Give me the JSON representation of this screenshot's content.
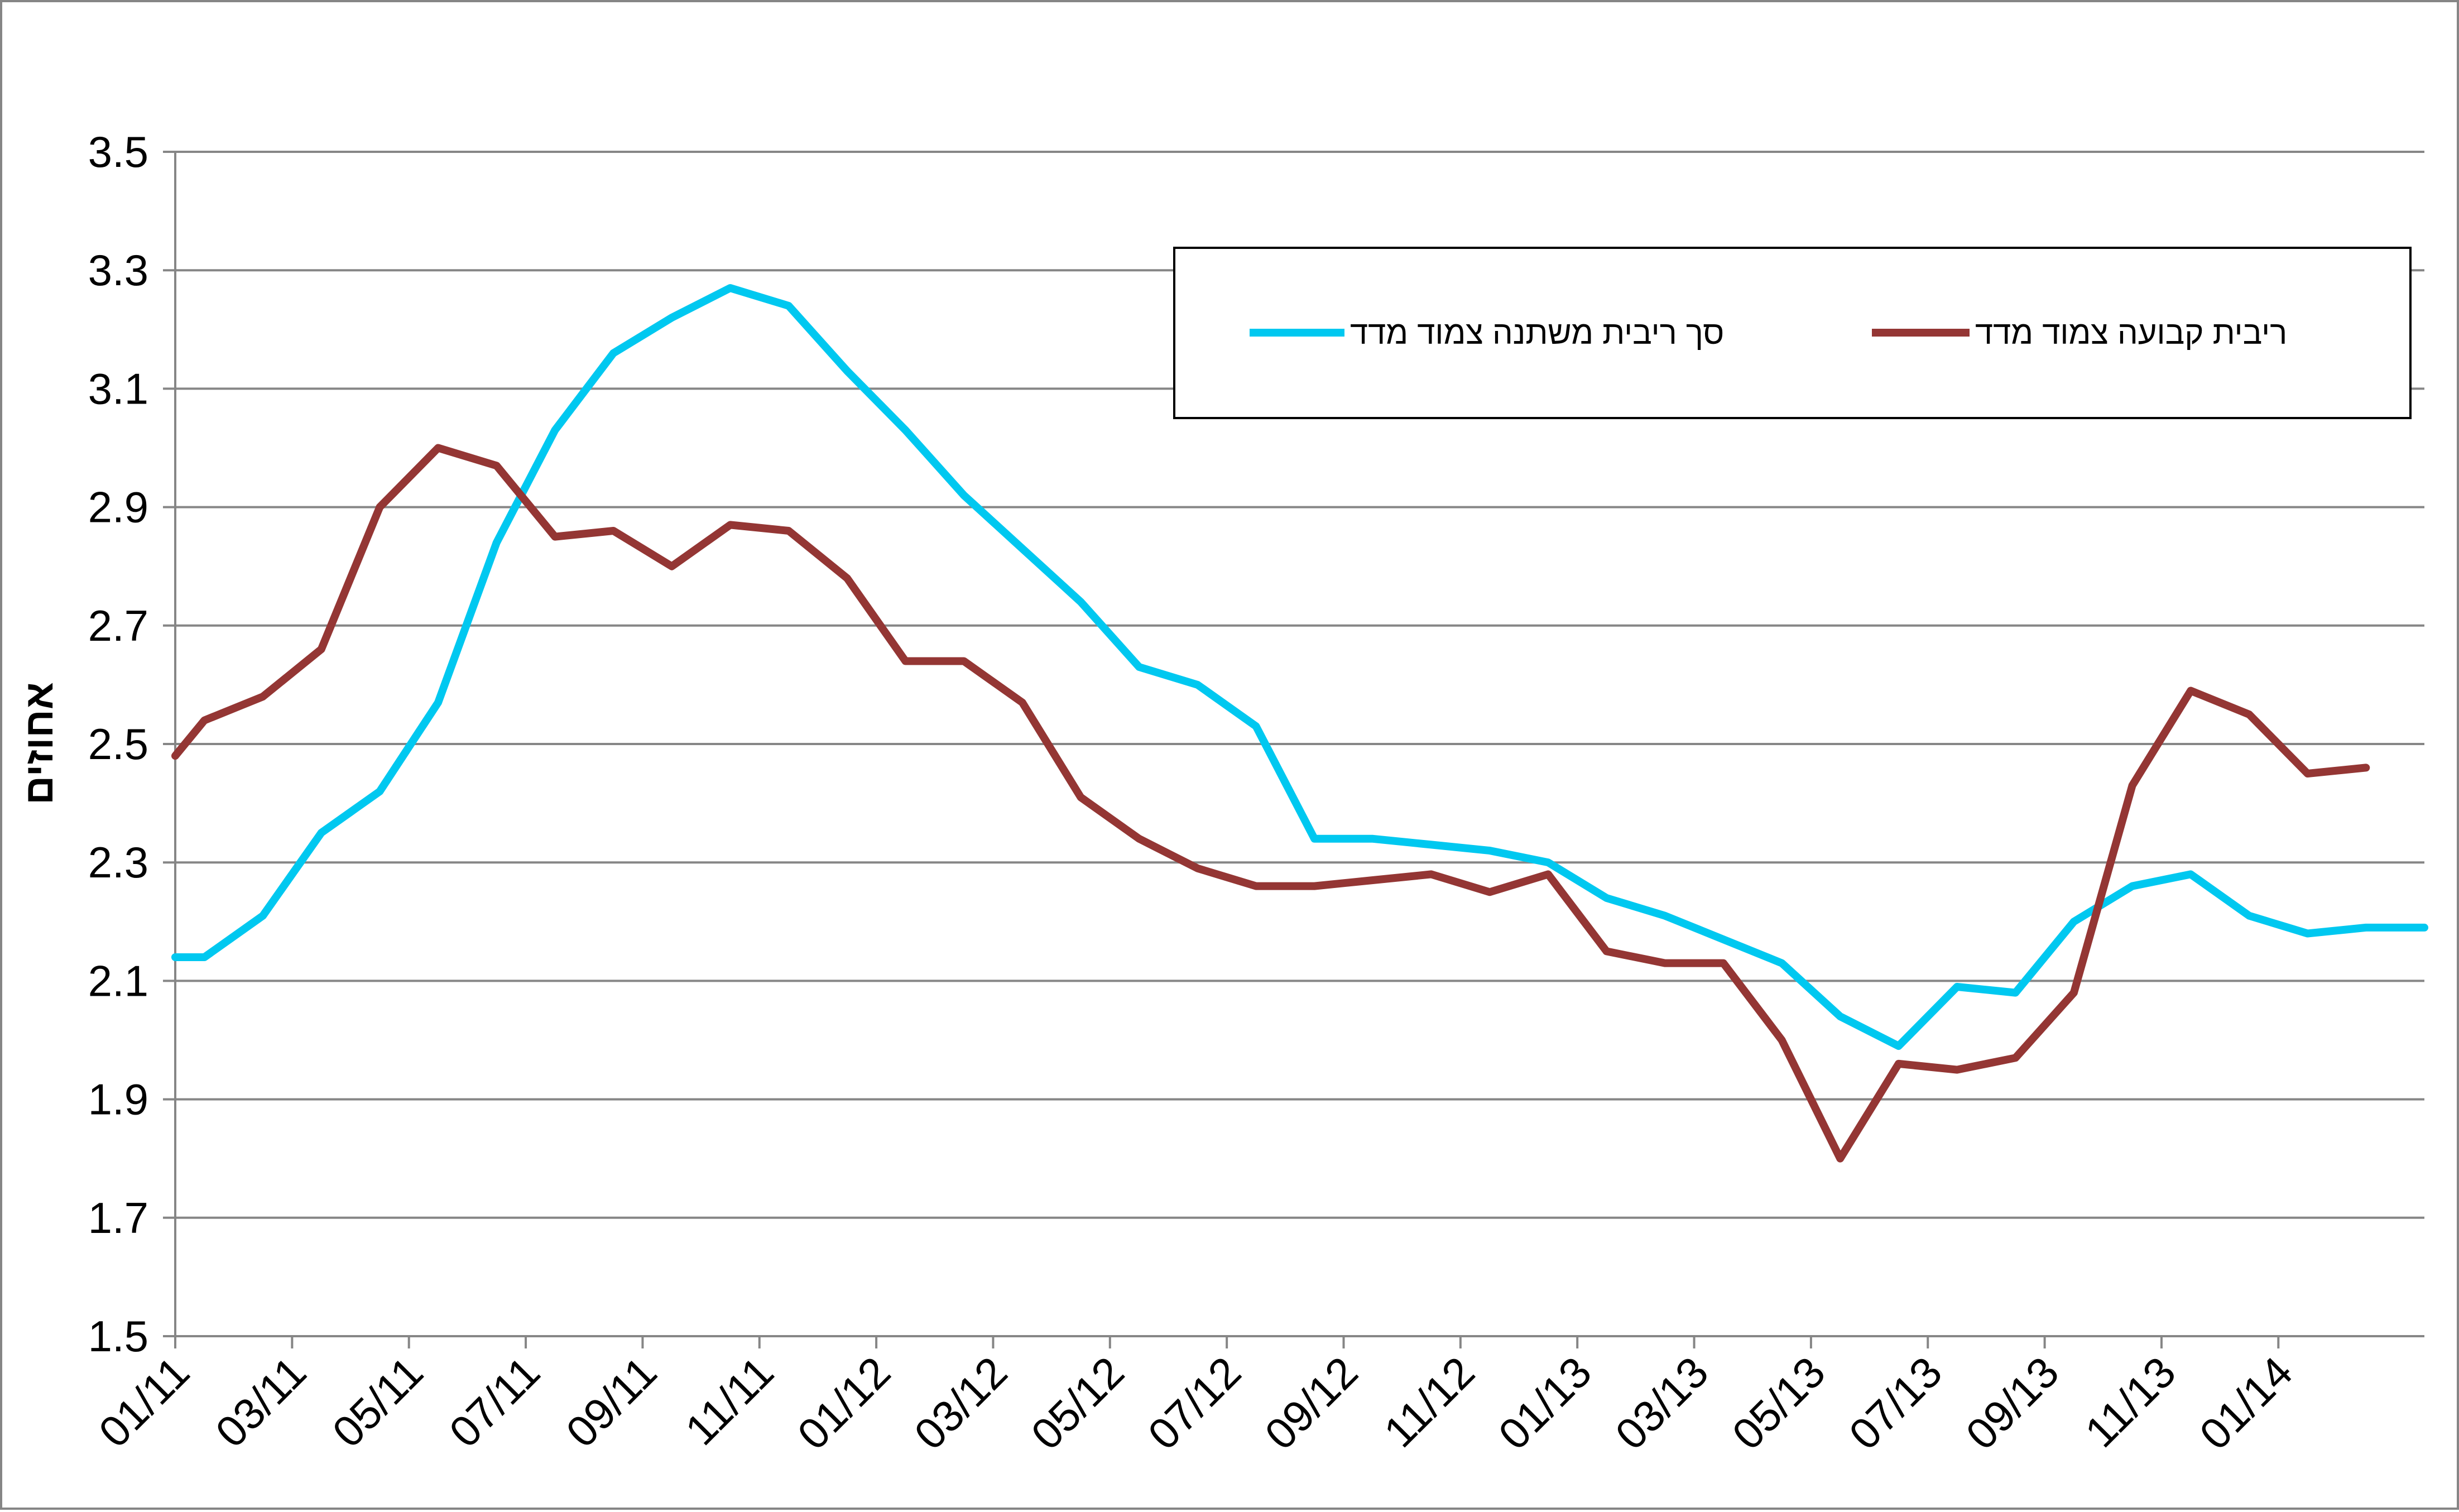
{
  "chart_data": {
    "type": "line",
    "ylabel": "אחוזים",
    "ylim": [
      1.5,
      3.5
    ],
    "y_ticks": [
      "3.5",
      "3.3",
      "3.1",
      "2.9",
      "2.7",
      "2.5",
      "2.3",
      "2.1",
      "1.9",
      "1.7",
      "1.5"
    ],
    "x_tick_labels": [
      "01/11",
      "03/11",
      "05/11",
      "07/11",
      "09/11",
      "11/11",
      "01/12",
      "03/12",
      "05/12",
      "07/12",
      "09/12",
      "11/12",
      "01/13",
      "03/13",
      "05/13",
      "07/13",
      "09/13",
      "11/13",
      "01/14"
    ],
    "grid": true,
    "legend_position": "top-right",
    "series": [
      {
        "name": "סך ריבית משתנה צמוד מדד",
        "color": "#00c8f0",
        "x": [
          0,
          0.5,
          1.5,
          2.5,
          3.5,
          4.5,
          5.5,
          6.5,
          7.5,
          8.5,
          9.5,
          10.5,
          11.5,
          12.5,
          13.5,
          14.5,
          15.5,
          16.5,
          17.5,
          18.5,
          19.5,
          20.5,
          21.5,
          22.5,
          23.5,
          24.5,
          25.5,
          26.5,
          27.5,
          28.5,
          29.5,
          30.5,
          31.5,
          32.5,
          33.5,
          34.5,
          35.5,
          36.5,
          37.5,
          38.5
        ],
        "values": [
          2.14,
          2.14,
          2.21,
          2.35,
          2.42,
          2.57,
          2.84,
          3.03,
          3.16,
          3.22,
          3.27,
          3.24,
          3.13,
          3.03,
          2.92,
          2.83,
          2.74,
          2.63,
          2.6,
          2.53,
          2.34,
          2.34,
          2.33,
          2.32,
          2.3,
          2.24,
          2.21,
          2.17,
          2.13,
          2.04,
          1.99,
          2.09,
          2.08,
          2.2,
          2.26,
          2.28,
          2.21,
          2.18,
          2.19,
          2.19
        ]
      },
      {
        "name": "ריבית קבועה צמוד מדד",
        "color": "#943634",
        "x": [
          0,
          0.5,
          1.5,
          2.5,
          3.5,
          4.5,
          5.5,
          6.5,
          7.5,
          8.5,
          9.5,
          10.5,
          11.5,
          12.5,
          13.5,
          14.5,
          15.5,
          16.5,
          17.5,
          18.5,
          19.5,
          20.5,
          21.5,
          22.5,
          23.5,
          24.5,
          25.5,
          26.5,
          27.5,
          28.5,
          29.5,
          30.5,
          31.5,
          32.5,
          33.5,
          34.5,
          35.5,
          36.5,
          37.5
        ],
        "values": [
          2.48,
          2.54,
          2.58,
          2.66,
          2.9,
          3.0,
          2.97,
          2.85,
          2.86,
          2.8,
          2.87,
          2.86,
          2.78,
          2.64,
          2.64,
          2.57,
          2.41,
          2.34,
          2.29,
          2.26,
          2.26,
          2.27,
          2.28,
          2.25,
          2.28,
          2.15,
          2.13,
          2.13,
          2.0,
          1.8,
          1.96,
          1.95,
          1.97,
          2.08,
          2.43,
          2.59,
          2.55,
          2.45,
          2.46
        ]
      }
    ]
  }
}
